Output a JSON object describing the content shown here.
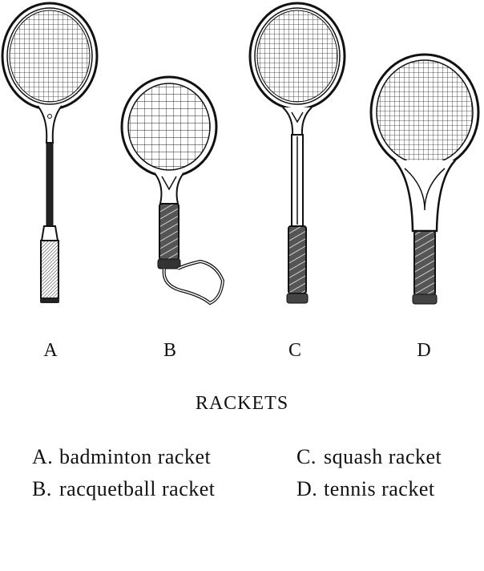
{
  "title": "RACKETS",
  "rackets": [
    {
      "letter": "A",
      "name": "badminton racket"
    },
    {
      "letter": "B",
      "name": "racquetball racket"
    },
    {
      "letter": "C",
      "name": "squash racket"
    },
    {
      "letter": "D",
      "name": "tennis racket"
    }
  ],
  "legend": [
    {
      "key": "A.",
      "text": "badminton racket"
    },
    {
      "key": "B.",
      "text": "racquetball racket"
    },
    {
      "key": "C.",
      "text": "squash racket"
    },
    {
      "key": "D.",
      "text": "tennis racket"
    }
  ]
}
